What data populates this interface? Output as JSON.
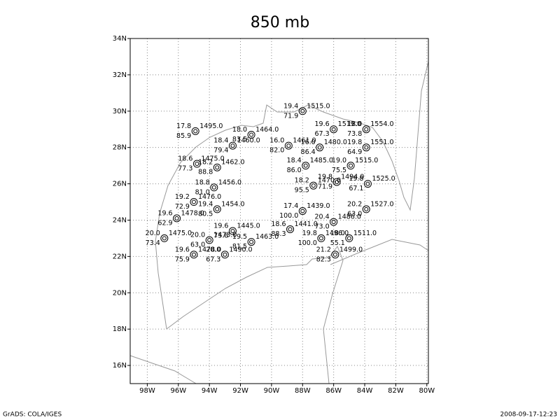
{
  "map": {
    "title": "850 mb",
    "xlim": [
      -99.1,
      -79.9
    ],
    "ylim": [
      15,
      34
    ],
    "xticks": [
      {
        "value": -98,
        "label": "98W"
      },
      {
        "value": -96,
        "label": "96W"
      },
      {
        "value": -94,
        "label": "94W"
      },
      {
        "value": -92,
        "label": "92W"
      },
      {
        "value": -90,
        "label": "90W"
      },
      {
        "value": -88,
        "label": "88W"
      },
      {
        "value": -86,
        "label": "86W"
      },
      {
        "value": -84,
        "label": "84W"
      },
      {
        "value": -82,
        "label": "82W"
      },
      {
        "value": -80,
        "label": "80W"
      }
    ],
    "yticks": [
      {
        "value": 16,
        "label": "16N"
      },
      {
        "value": 18,
        "label": "18N"
      },
      {
        "value": 20,
        "label": "20N"
      },
      {
        "value": 22,
        "label": "22N"
      },
      {
        "value": 24,
        "label": "24N"
      },
      {
        "value": 26,
        "label": "26N"
      },
      {
        "value": 28,
        "label": "28N"
      },
      {
        "value": 30,
        "label": "30N"
      },
      {
        "value": 32,
        "label": "32N"
      },
      {
        "value": 34,
        "label": "34N"
      }
    ],
    "grid": true,
    "stations": [
      {
        "lon": -88.0,
        "lat": 30.0,
        "temp": "19.4",
        "rh": "71.9",
        "height": "1515.0"
      },
      {
        "lon": -86.0,
        "lat": 29.0,
        "temp": "19.6",
        "rh": "67.3",
        "height": "1519.0"
      },
      {
        "lon": -83.9,
        "lat": 29.0,
        "temp": "18.0",
        "rh": "73.8",
        "height": "1554.0"
      },
      {
        "lon": -94.9,
        "lat": 28.9,
        "temp": "17.8",
        "rh": "85.9",
        "height": "1495.0"
      },
      {
        "lon": -83.9,
        "lat": 28.0,
        "temp": "19.8",
        "rh": "64.9",
        "height": "1551.0"
      },
      {
        "lon": -86.9,
        "lat": 28.0,
        "temp": "16.0",
        "rh": "86.4",
        "height": "1480.0"
      },
      {
        "lon": -88.9,
        "lat": 28.1,
        "temp": "16.0",
        "rh": "82.0",
        "height": "1461.0"
      },
      {
        "lon": -91.3,
        "lat": 28.7,
        "temp": "18.0",
        "rh": "83.5",
        "height": "1464.0"
      },
      {
        "lon": -92.5,
        "lat": 28.1,
        "temp": "18.4",
        "rh": "79.4",
        "height": "1460.0"
      },
      {
        "lon": -94.8,
        "lat": 27.1,
        "temp": "18.6",
        "rh": "77.3",
        "height": "1475.0"
      },
      {
        "lon": -93.5,
        "lat": 26.9,
        "temp": "18.2",
        "rh": "88.8",
        "height": "1462.0"
      },
      {
        "lon": -87.8,
        "lat": 27.0,
        "temp": "18.4",
        "rh": "86.0",
        "height": "1485.0"
      },
      {
        "lon": -84.9,
        "lat": 27.0,
        "temp": "19.0",
        "rh": "75.5",
        "height": "1515.0"
      },
      {
        "lon": -93.7,
        "lat": 25.8,
        "temp": "18.8",
        "rh": "81.0",
        "height": "1456.0"
      },
      {
        "lon": -87.3,
        "lat": 25.9,
        "temp": "18.2",
        "rh": "95.5",
        "height": "1470.0"
      },
      {
        "lon": -85.8,
        "lat": 26.1,
        "temp": "19.8",
        "rh": "71.9",
        "height": "1494.0"
      },
      {
        "lon": -83.8,
        "lat": 26.0,
        "temp": "19.8",
        "rh": "67.1",
        "height": "1525.0"
      },
      {
        "lon": -95.0,
        "lat": 25.0,
        "temp": "19.2",
        "rh": "72.9",
        "height": "1476.0"
      },
      {
        "lon": -93.5,
        "lat": 24.6,
        "temp": "19.4",
        "rh": "80.5",
        "height": "1454.0"
      },
      {
        "lon": -96.1,
        "lat": 24.1,
        "temp": "19.6",
        "rh": "62.9",
        "height": "1478.0"
      },
      {
        "lon": -88.0,
        "lat": 24.5,
        "temp": "17.4",
        "rh": "100.0",
        "height": "1439.0"
      },
      {
        "lon": -86.0,
        "lat": 23.9,
        "temp": "20.4",
        "rh": "73.0",
        "height": "1486.0"
      },
      {
        "lon": -83.9,
        "lat": 24.6,
        "temp": "20.2",
        "rh": "63.0",
        "height": "1527.0"
      },
      {
        "lon": -96.9,
        "lat": 23.0,
        "temp": "20.0",
        "rh": "73.4",
        "height": "1475.0"
      },
      {
        "lon": -92.5,
        "lat": 23.4,
        "temp": "19.6",
        "rh": "75.8",
        "height": "1445.0"
      },
      {
        "lon": -94.0,
        "lat": 22.9,
        "temp": "20.0",
        "rh": "63.0",
        "height": "1473.0"
      },
      {
        "lon": -88.8,
        "lat": 23.5,
        "temp": "18.6",
        "rh": "88.3",
        "height": "1441.0"
      },
      {
        "lon": -86.8,
        "lat": 23.0,
        "temp": "19.8",
        "rh": "100.0",
        "height": "1496.0"
      },
      {
        "lon": -85.0,
        "lat": 23.0,
        "temp": "18.0",
        "rh": "55.1",
        "height": "1511.0"
      },
      {
        "lon": -95.0,
        "lat": 22.1,
        "temp": "19.6",
        "rh": "75.9",
        "height": "1478.0"
      },
      {
        "lon": -93.0,
        "lat": 22.1,
        "temp": "20.0",
        "rh": "67.3",
        "height": "1490.0"
      },
      {
        "lon": -85.9,
        "lat": 22.1,
        "temp": "21.2",
        "rh": "82.3",
        "height": "1499.0"
      },
      {
        "lon": -91.3,
        "lat": 22.8,
        "temp": "19.5",
        "rh": "81.5",
        "height": "1463.0"
      }
    ]
  },
  "footer": {
    "left": "GrADS: COLA/IGES",
    "right": "2008-09-17-12:23"
  }
}
